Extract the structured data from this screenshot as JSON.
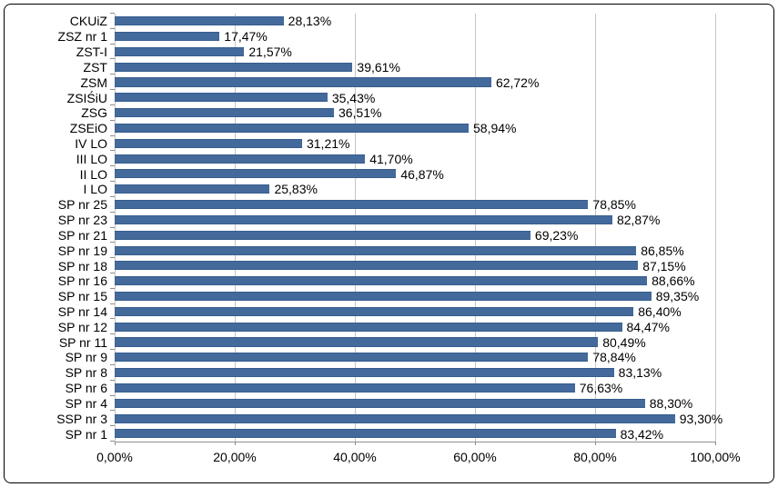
{
  "chart": {
    "title": "",
    "bar_color": "#44699b",
    "bar_border_color": "#365d8d",
    "gridline_color": "#c6c6c6",
    "tick_color": "#8e8e8e",
    "frame_border_color": "#000000",
    "background_color": "#ffffff"
  },
  "chart_data": {
    "type": "bar",
    "orientation": "horizontal",
    "title": "",
    "xlabel": "",
    "ylabel": "",
    "xlim": [
      0,
      100
    ],
    "grid": true,
    "legend": false,
    "categories": [
      "CKUiZ",
      "ZSZ nr 1",
      "ZST-I",
      "ZST",
      "ZSM",
      "ZSIŚiU",
      "ZSG",
      "ZSEiO",
      "IV LO",
      "III LO",
      "II LO",
      "I LO",
      "SP nr 25",
      "SP nr 23",
      "SP nr 21",
      "SP nr 19",
      "SP nr 18",
      "SP nr 16",
      "SP nr 15",
      "SP nr 14",
      "SP nr 12",
      "SP nr 11",
      "SP nr 9",
      "SP nr 8",
      "SP nr 6",
      "SP nr 4",
      "SSP nr 3",
      "SP nr 1"
    ],
    "values": [
      28.13,
      17.47,
      21.57,
      39.61,
      62.72,
      35.43,
      36.51,
      58.94,
      31.21,
      41.7,
      46.87,
      25.83,
      78.85,
      82.87,
      69.23,
      86.85,
      87.15,
      88.66,
      89.35,
      86.4,
      84.47,
      80.49,
      78.84,
      83.13,
      76.63,
      88.3,
      93.3,
      83.42
    ],
    "value_labels": [
      "28,13%",
      "17,47%",
      "21,57%",
      "39,61%",
      "62,72%",
      "35,43%",
      "36,51%",
      "58,94%",
      "31,21%",
      "41,70%",
      "46,87%",
      "25,83%",
      "78,85%",
      "82,87%",
      "69,23%",
      "86,85%",
      "87,15%",
      "88,66%",
      "89,35%",
      "86,40%",
      "84,47%",
      "80,49%",
      "78,84%",
      "83,13%",
      "76,63%",
      "88,30%",
      "93,30%",
      "83,42%"
    ],
    "x_ticks": [
      0,
      20,
      40,
      60,
      80,
      100
    ],
    "x_tick_labels": [
      "0,00%",
      "20,00%",
      "40,00%",
      "60,00%",
      "80,00%",
      "100,00%"
    ]
  }
}
